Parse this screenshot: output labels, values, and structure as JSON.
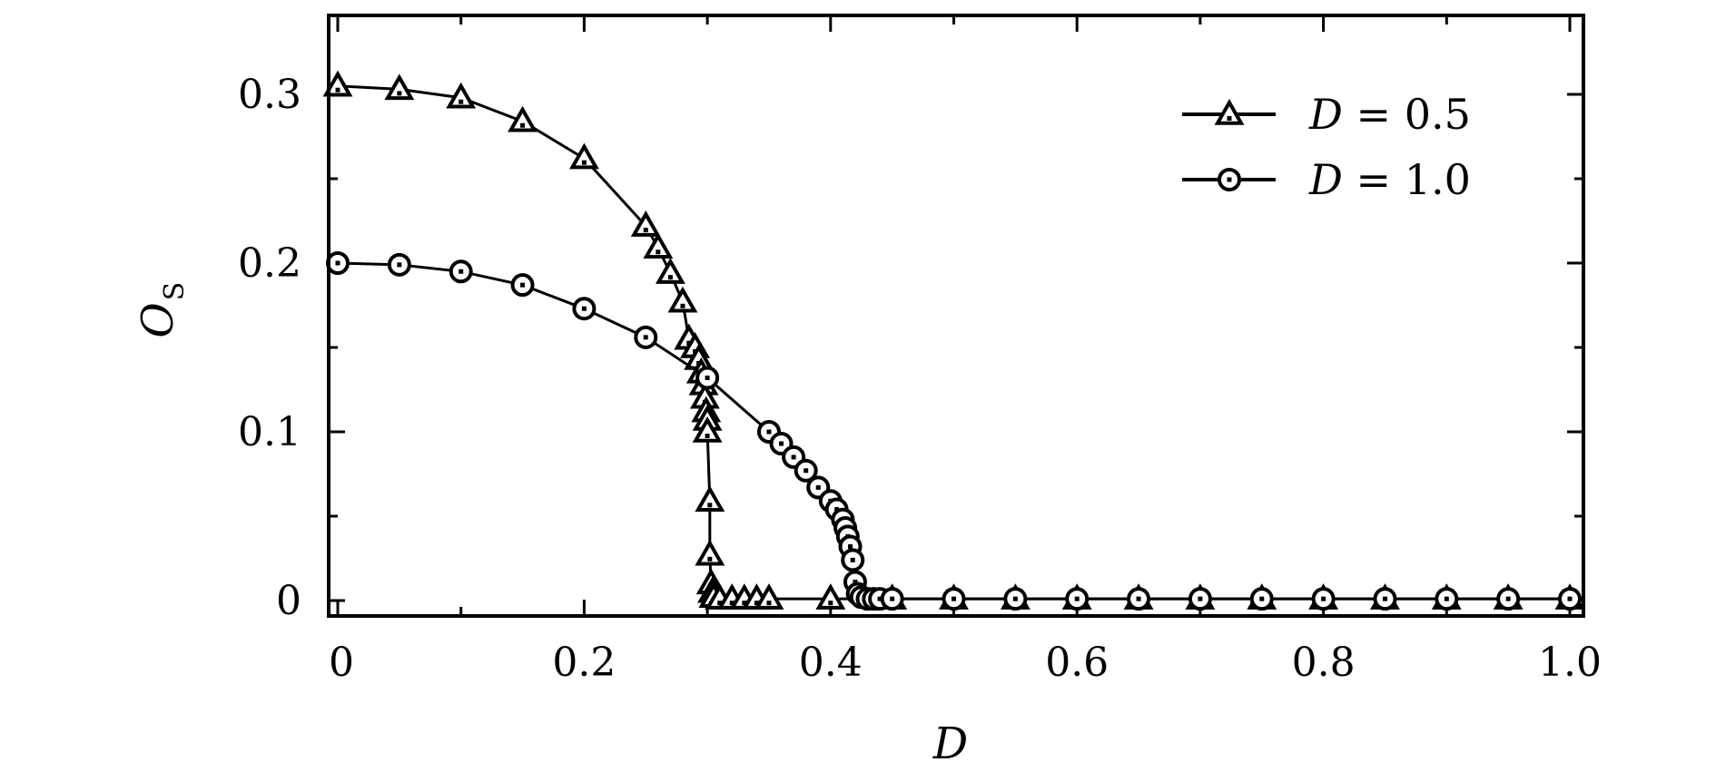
{
  "chart_data": {
    "type": "line",
    "xlabel": "D",
    "ylabel": "O",
    "ylabel_subscript": "S",
    "xlim": [
      0,
      1.0
    ],
    "ylim": [
      0,
      0.35
    ],
    "x_ticks": [
      0,
      0.2,
      0.4,
      0.6,
      0.8,
      1.0
    ],
    "x_tick_labels": [
      "0",
      "0.2",
      "0.4",
      "0.6",
      "0.8",
      "1.0"
    ],
    "y_ticks": [
      0,
      0.1,
      0.2,
      0.3
    ],
    "y_tick_labels": [
      "0",
      "0.1",
      "0.2",
      "0.3"
    ],
    "grid": false,
    "legend_position": "top-right",
    "series": [
      {
        "name": "D = 0.5",
        "legend_var": "D",
        "legend_eq": " = ",
        "legend_val": "0.5",
        "marker": "triangle",
        "color": "#000000",
        "x": [
          0,
          0.05,
          0.1,
          0.15,
          0.2,
          0.25,
          0.26,
          0.27,
          0.28,
          0.285,
          0.29,
          0.293,
          0.295,
          0.297,
          0.298,
          0.299,
          0.3,
          0.3,
          0.302,
          0.302,
          0.303,
          0.304,
          0.305,
          0.31,
          0.32,
          0.33,
          0.34,
          0.35,
          0.4,
          0.45,
          0.5,
          0.55,
          0.6,
          0.65,
          0.7,
          0.75,
          0.8,
          0.85,
          0.9,
          0.95,
          1.0
        ],
        "y": [
          0.305,
          0.303,
          0.298,
          0.284,
          0.262,
          0.222,
          0.209,
          0.194,
          0.177,
          0.155,
          0.15,
          0.143,
          0.135,
          0.128,
          0.12,
          0.112,
          0.107,
          0.1,
          0.059,
          0.027,
          0.01,
          0.005,
          0.002,
          0.001,
          0.001,
          0.001,
          0.001,
          0.001,
          0.001,
          0.001,
          0.001,
          0.001,
          0.001,
          0.001,
          0.001,
          0.001,
          0.001,
          0.001,
          0.001,
          0.001,
          0.001
        ]
      },
      {
        "name": "D = 1.0",
        "legend_var": "D",
        "legend_eq": " = ",
        "legend_val": "1.0",
        "marker": "circle",
        "color": "#000000",
        "x": [
          0,
          0.05,
          0.1,
          0.15,
          0.2,
          0.25,
          0.3,
          0.35,
          0.36,
          0.37,
          0.38,
          0.39,
          0.4,
          0.405,
          0.41,
          0.412,
          0.414,
          0.416,
          0.418,
          0.42,
          0.422,
          0.425,
          0.43,
          0.435,
          0.44,
          0.45,
          0.5,
          0.55,
          0.6,
          0.65,
          0.7,
          0.75,
          0.8,
          0.85,
          0.9,
          0.95,
          1.0
        ],
        "y": [
          0.2,
          0.199,
          0.195,
          0.187,
          0.173,
          0.156,
          0.132,
          0.1,
          0.093,
          0.085,
          0.077,
          0.067,
          0.059,
          0.054,
          0.048,
          0.043,
          0.038,
          0.032,
          0.024,
          0.011,
          0.004,
          0.002,
          0.001,
          0.001,
          0.001,
          0.001,
          0.001,
          0.001,
          0.001,
          0.001,
          0.001,
          0.001,
          0.001,
          0.001,
          0.001,
          0.001,
          0.001
        ]
      }
    ]
  }
}
